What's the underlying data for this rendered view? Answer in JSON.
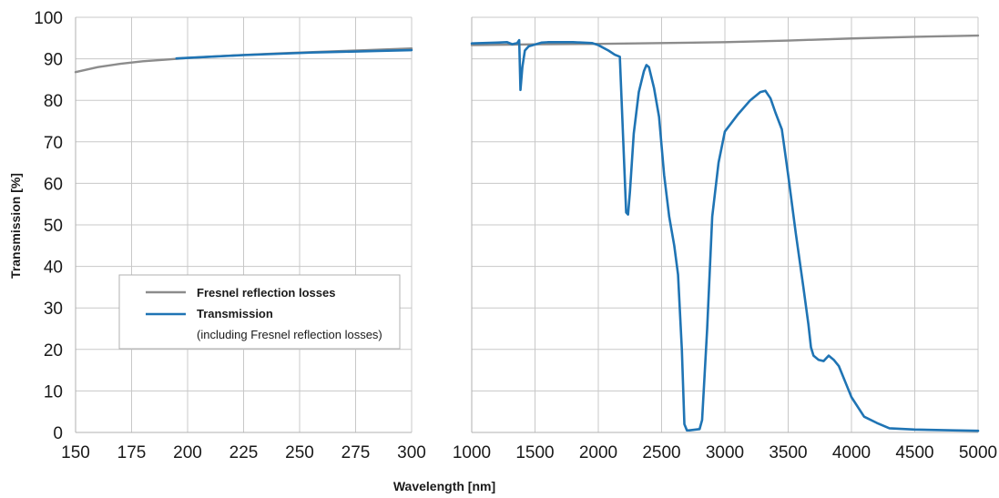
{
  "chart_data": {
    "type": "line",
    "ylabel": "Transmission [%]",
    "xlabel": "Wavelength [nm]",
    "ylim": [
      0,
      100
    ],
    "yticks": [
      "0",
      "10",
      "20",
      "30",
      "40",
      "50",
      "60",
      "70",
      "80",
      "90",
      "100"
    ],
    "grid": true,
    "colors": {
      "fresnel": "#8c8c8c",
      "transmission": "#1f74b4",
      "grid": "#c8c8c8",
      "frame": "#b0b0b0"
    },
    "legend": {
      "placement": "lower-left of left panel",
      "entries": [
        {
          "label": "Fresnel reflection losses",
          "series": "fresnel"
        },
        {
          "label": "Transmission",
          "sublabel": "(including Fresnel reflection losses)",
          "series": "transmission"
        }
      ]
    },
    "panels": [
      {
        "xlim": [
          150,
          300
        ],
        "xticks": [
          "150",
          "175",
          "200",
          "225",
          "250",
          "275",
          "300"
        ],
        "series": [
          {
            "key": "fresnel",
            "name": "Fresnel reflection losses",
            "x": [
              150,
              160,
              170,
              180,
              190,
              200,
              220,
              240,
              260,
              280,
              300
            ],
            "y": [
              86.8,
              88.0,
              88.8,
              89.4,
              89.8,
              90.2,
              90.8,
              91.3,
              91.7,
              92.1,
              92.5
            ]
          },
          {
            "key": "transmission",
            "name": "Transmission",
            "x": [
              195,
              210,
              225,
              240,
              255,
              270,
              285,
              300
            ],
            "y": [
              90.1,
              90.5,
              90.9,
              91.2,
              91.5,
              91.7,
              91.9,
              92.1
            ]
          }
        ]
      },
      {
        "xlim": [
          1000,
          5000
        ],
        "xticks": [
          "1000",
          "1500",
          "2000",
          "2500",
          "3000",
          "3500",
          "4000",
          "4500",
          "5000"
        ],
        "series": [
          {
            "key": "fresnel",
            "name": "Fresnel reflection losses",
            "x": [
              1000,
              1500,
              2000,
              2500,
              3000,
              3500,
              4000,
              4500,
              5000
            ],
            "y": [
              93.3,
              93.5,
              93.6,
              93.8,
              94.0,
              94.4,
              94.9,
              95.3,
              95.6
            ]
          },
          {
            "key": "transmission",
            "name": "Transmission",
            "x": [
              1000,
              1200,
              1280,
              1320,
              1360,
              1375,
              1385,
              1400,
              1420,
              1450,
              1550,
              1600,
              1800,
              1950,
              2000,
              2080,
              2130,
              2170,
              2220,
              2235,
              2250,
              2280,
              2320,
              2360,
              2380,
              2400,
              2440,
              2480,
              2520,
              2560,
              2600,
              2630,
              2660,
              2680,
              2700,
              2720,
              2800,
              2820,
              2860,
              2900,
              2950,
              3000,
              3100,
              3200,
              3280,
              3320,
              3360,
              3400,
              3450,
              3500,
              3560,
              3620,
              3660,
              3680,
              3700,
              3740,
              3780,
              3820,
              3860,
              3900,
              3960,
              4000,
              4100,
              4200,
              4300,
              4500,
              4800,
              5000
            ],
            "y": [
              93.7,
              93.9,
              94.0,
              93.5,
              93.8,
              94.5,
              82.5,
              88.0,
              92.0,
              93.0,
              93.9,
              94.0,
              94.0,
              93.8,
              93.3,
              92.0,
              91.0,
              90.5,
              53.0,
              52.5,
              58.0,
              72.0,
              82.0,
              87.0,
              88.5,
              88.0,
              83.0,
              76.0,
              62.0,
              52.0,
              45.0,
              38.0,
              20.0,
              2.0,
              0.5,
              0.5,
              0.8,
              3.0,
              25.0,
              52.0,
              65.0,
              72.5,
              76.5,
              80.0,
              82.0,
              82.3,
              80.5,
              77.0,
              73.0,
              62.0,
              48.0,
              35.0,
              26.0,
              20.5,
              18.5,
              17.5,
              17.2,
              18.5,
              17.5,
              16.0,
              11.5,
              8.5,
              3.8,
              2.3,
              1.0,
              0.7,
              0.5,
              0.4
            ]
          }
        ]
      }
    ]
  }
}
